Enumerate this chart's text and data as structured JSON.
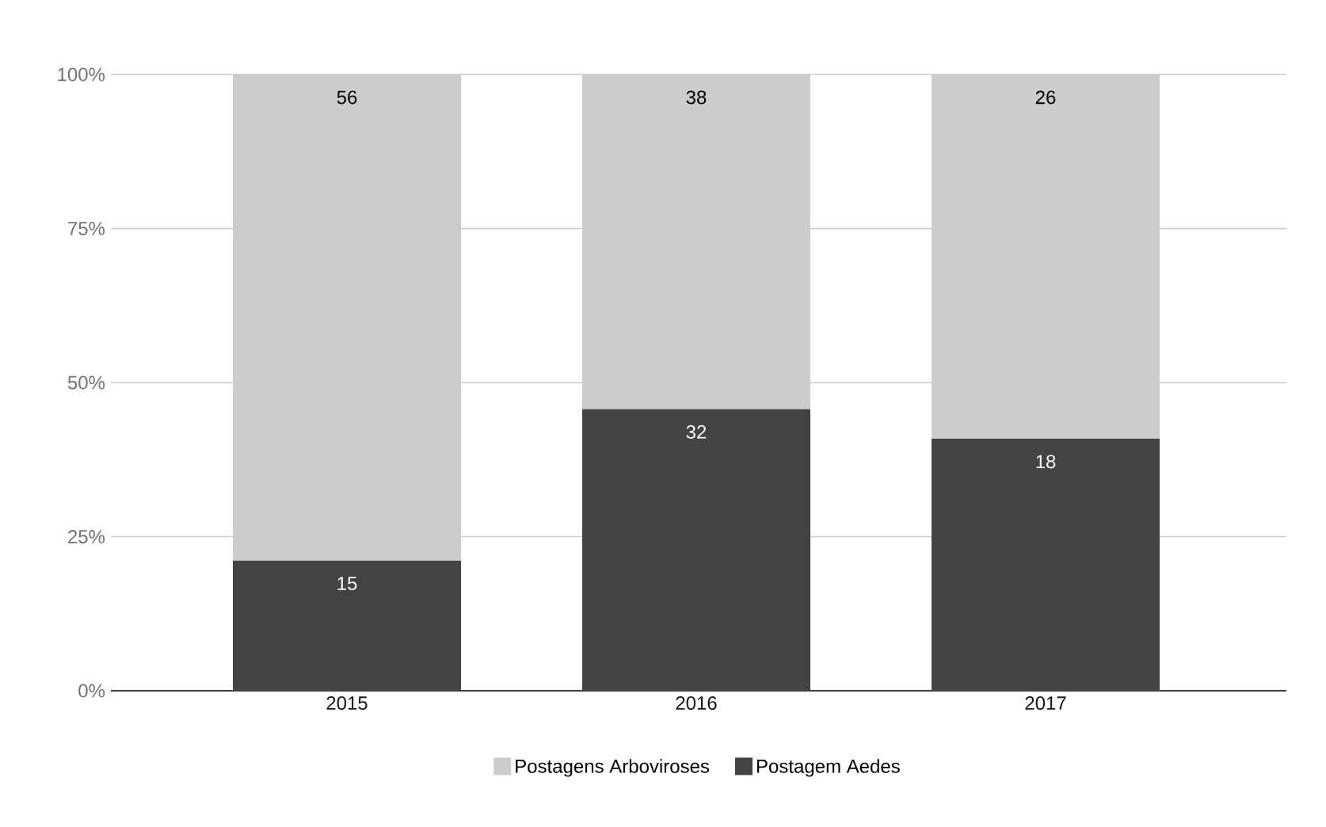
{
  "chart_data": {
    "type": "bar",
    "stacked": true,
    "categories": [
      "2015",
      "2016",
      "2017"
    ],
    "series": [
      {
        "name": "Postagem Aedes",
        "color": "#434343",
        "values": [
          21.1,
          45.7,
          40.9
        ]
      },
      {
        "name": "Postagens Arboviroses",
        "color": "#cccccc",
        "values": [
          78.9,
          54.3,
          59.1
        ]
      }
    ],
    "annotations": [
      {
        "text": "15",
        "x": "2015",
        "y": 21.1
      },
      {
        "text": "32",
        "x": "2016",
        "y": 45.7
      },
      {
        "text": "18",
        "x": "2017",
        "y": 40.9
      },
      {
        "text": "56",
        "x": "2015",
        "y": 100
      },
      {
        "text": "38",
        "x": "2016",
        "y": 100
      },
      {
        "text": "26",
        "x": "2017",
        "y": 100
      }
    ],
    "ylim": [
      0,
      100
    ],
    "yticks": [
      {
        "value": 0,
        "label": "0%"
      },
      {
        "value": 25,
        "label": "25%"
      },
      {
        "value": 50,
        "label": "50%"
      },
      {
        "value": 75,
        "label": "75%"
      },
      {
        "value": 100,
        "label": "100%"
      }
    ],
    "grid": "y",
    "legend": "bottom"
  }
}
